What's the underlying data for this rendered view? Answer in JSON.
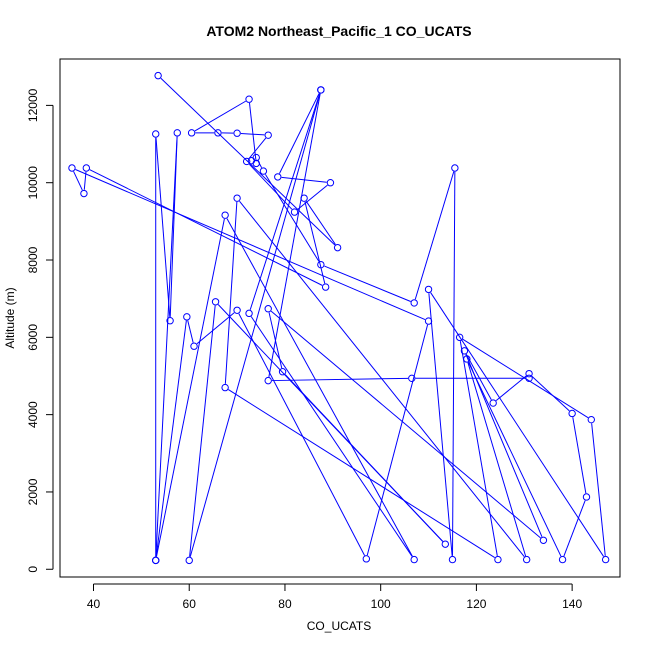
{
  "chart_data": {
    "type": "line",
    "title": "ATOM2 Northeast_Pacific_1 CO_UCATS",
    "xlabel": "CO_UCATS",
    "ylabel": "Altitude (m)",
    "xlim": [
      33,
      150
    ],
    "ylim": [
      -200,
      13200
    ],
    "x_ticks": [
      40,
      60,
      80,
      100,
      120,
      140
    ],
    "y_ticks": [
      0,
      2000,
      4000,
      6000,
      8000,
      10000,
      12000
    ],
    "color": "#0000ff",
    "markers": "open-circle",
    "series": [
      {
        "points": [
          [
            53.5,
            12770
          ],
          [
            91,
            8320
          ],
          [
            84,
            9600
          ],
          [
            88.5,
            7300
          ],
          [
            38.5,
            10380
          ],
          [
            38,
            9720
          ],
          [
            35.5,
            10380
          ],
          [
            110,
            6420
          ],
          [
            97,
            270
          ],
          [
            70,
            6700
          ],
          [
            61,
            5770
          ],
          [
            59.5,
            6530
          ],
          [
            53,
            230
          ],
          [
            53,
            11260
          ],
          [
            56,
            6430
          ],
          [
            57.5,
            11290
          ],
          [
            53,
            230
          ],
          [
            67.5,
            9160
          ],
          [
            107,
            250
          ],
          [
            72.5,
            6620
          ],
          [
            87.5,
            12400
          ],
          [
            78.5,
            10150
          ],
          [
            89.5,
            10000
          ],
          [
            82,
            9240
          ],
          [
            72,
            10550
          ],
          [
            76.5,
            11230
          ],
          [
            70,
            11280
          ],
          [
            66,
            11290
          ],
          [
            60.5,
            11290
          ],
          [
            72.5,
            12160
          ],
          [
            74,
            10500
          ],
          [
            73,
            10570
          ],
          [
            74,
            10650
          ],
          [
            75.5,
            10300
          ],
          [
            87.5,
            7880
          ],
          [
            107,
            6890
          ],
          [
            115.5,
            10380
          ],
          [
            115,
            250
          ],
          [
            110,
            7240
          ],
          [
            147,
            250
          ],
          [
            144,
            3870
          ],
          [
            116.5,
            6000
          ],
          [
            124.5,
            250
          ],
          [
            67.5,
            4700
          ],
          [
            70,
            9600
          ],
          [
            130.5,
            250
          ],
          [
            118,
            5440
          ],
          [
            138,
            250
          ],
          [
            143,
            1870
          ],
          [
            140,
            4030
          ],
          [
            131,
            5060
          ],
          [
            123.5,
            4300
          ],
          [
            117.5,
            5650
          ],
          [
            134,
            750
          ],
          [
            76.5,
            6740
          ],
          [
            79.5,
            5110
          ],
          [
            113.5,
            650
          ],
          [
            65.5,
            6920
          ],
          [
            60,
            230
          ],
          [
            87.5,
            12400
          ],
          [
            76.5,
            4880
          ],
          [
            106.5,
            4940
          ],
          [
            131,
            4940
          ]
        ]
      }
    ]
  }
}
